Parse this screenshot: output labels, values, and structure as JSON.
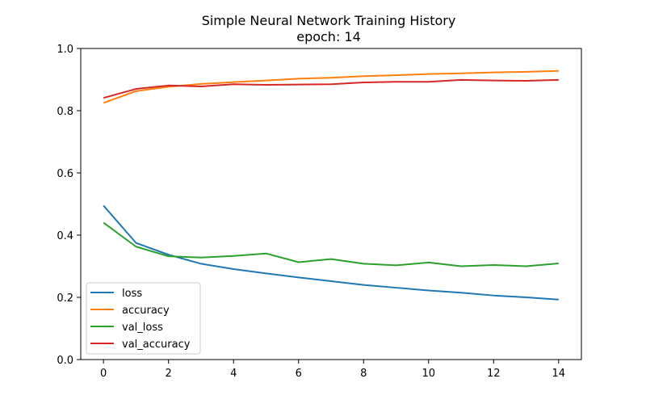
{
  "chart_data": {
    "type": "line",
    "title": "Simple Neural Network Training History",
    "subtitle": "epoch: 14",
    "xlabel": "",
    "ylabel": "",
    "xlim": [
      -0.7,
      14.7
    ],
    "ylim": [
      0.0,
      1.0
    ],
    "x_ticks": [
      0,
      2,
      4,
      6,
      8,
      10,
      12,
      14
    ],
    "y_ticks": [
      0.0,
      0.2,
      0.4,
      0.6,
      0.8,
      1.0
    ],
    "y_tick_labels": [
      "0.0",
      "0.2",
      "0.4",
      "0.6",
      "0.8",
      "1.0"
    ],
    "grid": false,
    "legend_position": "lower-left",
    "x": [
      0,
      1,
      2,
      3,
      4,
      5,
      6,
      7,
      8,
      9,
      10,
      11,
      12,
      13,
      14
    ],
    "series": [
      {
        "name": "loss",
        "color": "#1f77b4",
        "values": [
          0.495,
          0.375,
          0.337,
          0.308,
          0.291,
          0.277,
          0.264,
          0.252,
          0.24,
          0.231,
          0.222,
          0.215,
          0.206,
          0.2,
          0.193
        ]
      },
      {
        "name": "accuracy",
        "color": "#ff7f0e",
        "values": [
          0.825,
          0.863,
          0.877,
          0.886,
          0.892,
          0.897,
          0.903,
          0.906,
          0.911,
          0.914,
          0.918,
          0.92,
          0.923,
          0.925,
          0.928
        ]
      },
      {
        "name": "val_loss",
        "color": "#2ca02c",
        "values": [
          0.44,
          0.363,
          0.332,
          0.328,
          0.333,
          0.341,
          0.313,
          0.323,
          0.308,
          0.303,
          0.312,
          0.3,
          0.304,
          0.3,
          0.309
        ]
      },
      {
        "name": "val_accuracy",
        "color": "#d62728",
        "values": [
          0.841,
          0.87,
          0.881,
          0.878,
          0.885,
          0.883,
          0.884,
          0.885,
          0.891,
          0.893,
          0.893,
          0.899,
          0.897,
          0.896,
          0.899
        ]
      }
    ]
  }
}
